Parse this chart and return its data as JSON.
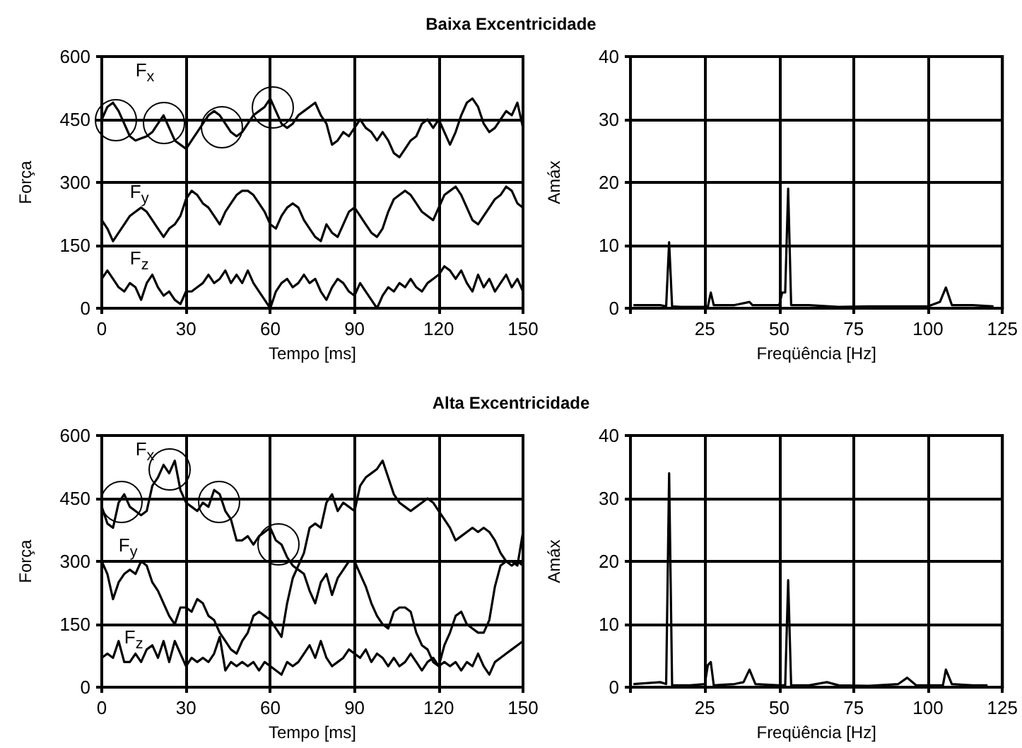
{
  "chart_data": [
    {
      "type": "line",
      "title": "Baixa Excentricidade",
      "xlabel": "Tempo [ms]",
      "ylabel": "Força",
      "xlim": [
        0,
        150
      ],
      "ylim": [
        0,
        600
      ],
      "xticks": [
        0,
        30,
        60,
        90,
        120,
        150
      ],
      "yticks": [
        0,
        150,
        300,
        450,
        600
      ],
      "grid": true,
      "x": [
        0,
        2,
        4,
        6,
        8,
        10,
        12,
        14,
        16,
        18,
        20,
        22,
        24,
        26,
        28,
        30,
        32,
        34,
        36,
        38,
        40,
        42,
        44,
        46,
        48,
        50,
        52,
        54,
        56,
        58,
        60,
        62,
        64,
        66,
        68,
        70,
        72,
        74,
        76,
        78,
        80,
        82,
        84,
        86,
        88,
        90,
        92,
        94,
        96,
        98,
        100,
        102,
        104,
        106,
        108,
        110,
        112,
        114,
        116,
        118,
        120,
        122,
        124,
        126,
        128,
        130,
        132,
        134,
        136,
        138,
        140,
        142,
        144,
        146,
        148,
        150
      ],
      "series": [
        {
          "name": "F$_{x}$",
          "color": "#000000",
          "values": [
            450,
            480,
            490,
            470,
            440,
            410,
            400,
            405,
            410,
            420,
            440,
            460,
            430,
            400,
            390,
            380,
            400,
            420,
            440,
            460,
            470,
            460,
            440,
            420,
            410,
            420,
            440,
            460,
            470,
            480,
            500,
            470,
            440,
            430,
            440,
            460,
            470,
            480,
            490,
            460,
            440,
            390,
            400,
            420,
            410,
            430,
            450,
            430,
            420,
            400,
            420,
            400,
            370,
            360,
            380,
            400,
            410,
            440,
            450,
            430,
            450,
            420,
            390,
            420,
            460,
            490,
            500,
            480,
            440,
            420,
            430,
            450,
            470,
            460,
            490,
            430
          ]
        },
        {
          "name": "F$_{y}$",
          "color": "#000000",
          "values": [
            210,
            190,
            160,
            180,
            200,
            220,
            230,
            240,
            230,
            210,
            190,
            170,
            190,
            200,
            220,
            260,
            280,
            270,
            250,
            240,
            220,
            200,
            230,
            250,
            270,
            280,
            280,
            270,
            250,
            230,
            200,
            190,
            220,
            240,
            250,
            240,
            210,
            190,
            170,
            160,
            200,
            180,
            170,
            200,
            230,
            240,
            220,
            200,
            180,
            170,
            190,
            230,
            260,
            270,
            280,
            270,
            250,
            230,
            220,
            210,
            240,
            270,
            280,
            290,
            270,
            240,
            210,
            200,
            220,
            240,
            260,
            270,
            290,
            280,
            250,
            240
          ]
        },
        {
          "name": "F$_{z}$",
          "color": "#000000",
          "values": [
            70,
            90,
            70,
            50,
            40,
            60,
            50,
            20,
            60,
            80,
            50,
            30,
            40,
            20,
            10,
            40,
            40,
            50,
            60,
            80,
            60,
            70,
            90,
            60,
            80,
            60,
            90,
            60,
            40,
            20,
            0,
            40,
            60,
            70,
            50,
            60,
            80,
            60,
            70,
            40,
            20,
            50,
            70,
            60,
            40,
            30,
            60,
            40,
            20,
            0,
            30,
            50,
            40,
            60,
            50,
            70,
            50,
            40,
            60,
            70,
            80,
            100,
            90,
            70,
            90,
            60,
            40,
            80,
            50,
            70,
            40,
            60,
            80,
            50,
            70,
            40
          ]
        }
      ]
    },
    {
      "type": "line",
      "xlabel": "Freqüência [Hz]",
      "ylabel": "Amáx",
      "xlim": [
        0,
        125
      ],
      "ylim": [
        0,
        40
      ],
      "xticks": [
        {
          "value": 0,
          "label": null
        },
        25,
        50,
        75,
        100,
        125
      ],
      "yticks": [
        0,
        10,
        20,
        30,
        40
      ],
      "grid": true,
      "series": [
        {
          "color": "#000000",
          "x": [
            1,
            5,
            10,
            12,
            13,
            14,
            17,
            26,
            27,
            28,
            35,
            40,
            41,
            50,
            51,
            52,
            53,
            54,
            60,
            70,
            80,
            90,
            100,
            104,
            106,
            108,
            115,
            122
          ],
          "values": [
            0.5,
            0.5,
            0.5,
            0.3,
            10.5,
            0.3,
            0.2,
            0.2,
            2.5,
            0.5,
            0.5,
            1,
            0.5,
            0.5,
            2.5,
            2.5,
            19,
            0.5,
            0.5,
            0.2,
            0.3,
            0.3,
            0.3,
            1,
            3.3,
            0.5,
            0.5,
            0.3
          ]
        }
      ]
    },
    {
      "type": "line",
      "title": "Alta Excentricidade",
      "xlabel": "Tempo [ms]",
      "ylabel": "Força",
      "xlim": [
        0,
        150
      ],
      "ylim": [
        0,
        600
      ],
      "xticks": [
        0,
        30,
        60,
        90,
        120,
        150
      ],
      "yticks": [
        0,
        150,
        300,
        450,
        600
      ],
      "grid": true,
      "x": [
        0,
        2,
        4,
        6,
        8,
        10,
        12,
        14,
        16,
        18,
        20,
        22,
        24,
        26,
        28,
        30,
        32,
        34,
        36,
        38,
        40,
        42,
        44,
        46,
        48,
        50,
        52,
        54,
        56,
        58,
        60,
        62,
        64,
        66,
        68,
        70,
        72,
        74,
        76,
        78,
        80,
        82,
        84,
        86,
        88,
        90,
        92,
        94,
        96,
        98,
        100,
        102,
        104,
        106,
        108,
        110,
        112,
        114,
        116,
        118,
        120,
        122,
        124,
        126,
        128,
        130,
        132,
        134,
        136,
        138,
        140,
        142,
        144,
        146,
        148,
        150
      ],
      "series": [
        {
          "name": "F$_{x}$",
          "color": "#000000",
          "values": [
            430,
            390,
            380,
            440,
            460,
            430,
            420,
            410,
            420,
            480,
            500,
            530,
            510,
            540,
            470,
            440,
            430,
            420,
            440,
            430,
            470,
            460,
            420,
            400,
            350,
            350,
            360,
            340,
            360,
            370,
            380,
            350,
            340,
            310,
            290,
            280,
            270,
            230,
            200,
            250,
            270,
            220,
            260,
            280,
            300,
            300,
            270,
            240,
            200,
            170,
            150,
            140,
            180,
            190,
            190,
            180,
            130,
            100,
            90,
            60,
            50,
            100,
            130,
            170,
            180,
            150,
            140,
            130,
            130,
            160,
            240,
            290,
            300,
            290,
            300,
            290
          ]
        },
        {
          "name": "F$_{y}$",
          "color": "#000000",
          "values": [
            300,
            270,
            210,
            250,
            270,
            280,
            270,
            300,
            290,
            250,
            230,
            200,
            170,
            150,
            190,
            190,
            180,
            210,
            200,
            170,
            160,
            130,
            110,
            90,
            80,
            110,
            130,
            170,
            180,
            170,
            160,
            140,
            120,
            200,
            260,
            290,
            320,
            380,
            390,
            380,
            440,
            460,
            420,
            440,
            430,
            420,
            480,
            500,
            510,
            520,
            540,
            500,
            460,
            440,
            430,
            420,
            430,
            440,
            450,
            440,
            420,
            400,
            380,
            350,
            360,
            370,
            380,
            370,
            380,
            370,
            350,
            320,
            300,
            300,
            290,
            370
          ]
        },
        {
          "name": "F$_{z}$",
          "color": "#000000",
          "values": [
            70,
            80,
            70,
            110,
            60,
            60,
            80,
            60,
            90,
            100,
            70,
            110,
            60,
            110,
            80,
            50,
            70,
            60,
            70,
            60,
            80,
            120,
            40,
            60,
            50,
            60,
            50,
            60,
            40,
            60,
            50,
            40,
            30,
            60,
            50,
            60,
            80,
            100,
            70,
            110,
            70,
            50,
            60,
            70,
            90,
            80,
            70,
            90,
            60,
            80,
            70,
            50,
            70,
            50,
            60,
            80,
            60,
            40,
            60,
            70,
            50,
            60,
            50,
            60,
            40,
            60,
            50,
            80,
            50,
            30,
            60,
            70,
            80,
            90,
            100,
            110
          ]
        }
      ]
    },
    {
      "type": "line",
      "xlabel": "Freqüência [Hz]",
      "ylabel": "Amáx",
      "xlim": [
        0,
        125
      ],
      "ylim": [
        0,
        40
      ],
      "xticks": [
        {
          "value": 0,
          "label": null
        },
        25,
        50,
        75,
        100,
        125
      ],
      "yticks": [
        0,
        10,
        20,
        30,
        40
      ],
      "grid": true,
      "series": [
        {
          "color": "#000000",
          "x": [
            1,
            10,
            12,
            13,
            14,
            20,
            25,
            26,
            27,
            28,
            35,
            38,
            40,
            42,
            50,
            52,
            53,
            54,
            60,
            66,
            70,
            80,
            90,
            93,
            96,
            105,
            106,
            108,
            115,
            120
          ],
          "values": [
            0.5,
            0.8,
            0.5,
            34,
            0.3,
            0.3,
            0.5,
            3.5,
            4,
            0.3,
            0.5,
            0.8,
            2.8,
            0.5,
            0.3,
            0.3,
            17,
            0.3,
            0.3,
            0.8,
            0.3,
            0.2,
            0.5,
            1.5,
            0.3,
            0.3,
            2.8,
            0.5,
            0.3,
            0.3
          ]
        }
      ]
    }
  ]
}
